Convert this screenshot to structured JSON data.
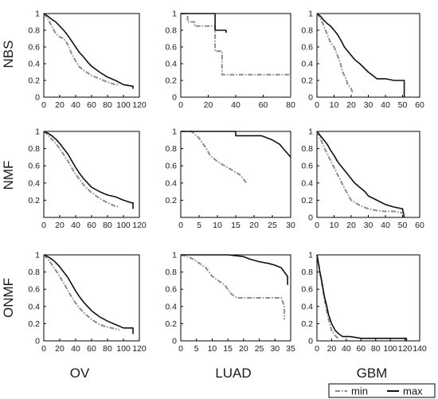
{
  "row_labels": [
    "NBS",
    "NMF",
    "ONMF"
  ],
  "col_labels": [
    "OV",
    "LUAD",
    "GBM"
  ],
  "legend": {
    "items": [
      {
        "label": "min",
        "style": "dashdot",
        "color": "#8c8c8c"
      },
      {
        "label": "max",
        "style": "solid",
        "color": "#111111"
      }
    ]
  },
  "colors": {
    "min": "#8c8c8c",
    "max": "#111111",
    "axes": "#000000"
  },
  "chart_data": [
    {
      "type": "line",
      "row": "NBS",
      "column": "OV",
      "xlim": [
        0,
        120
      ],
      "ylim": [
        0,
        1
      ],
      "xticks": [
        0,
        20,
        40,
        60,
        80,
        100,
        120
      ],
      "yticks": [
        0,
        0.2,
        0.4,
        0.6,
        0.8,
        1
      ],
      "series": [
        {
          "name": "min",
          "style": "dashdot",
          "x": [
            0,
            5,
            10,
            15,
            20,
            25,
            30,
            35,
            40,
            45,
            50,
            55,
            60,
            70,
            80,
            90,
            95
          ],
          "y": [
            1.0,
            0.94,
            0.85,
            0.76,
            0.72,
            0.7,
            0.63,
            0.52,
            0.43,
            0.36,
            0.32,
            0.29,
            0.26,
            0.22,
            0.18,
            0.15,
            0.15
          ]
        },
        {
          "name": "max",
          "style": "solid",
          "x": [
            0,
            5,
            10,
            15,
            20,
            25,
            30,
            35,
            40,
            45,
            50,
            55,
            60,
            70,
            80,
            90,
            100,
            112,
            112
          ],
          "y": [
            1.0,
            0.97,
            0.93,
            0.9,
            0.85,
            0.8,
            0.74,
            0.67,
            0.6,
            0.53,
            0.48,
            0.42,
            0.37,
            0.3,
            0.24,
            0.2,
            0.15,
            0.13,
            0.1
          ]
        }
      ]
    },
    {
      "type": "line",
      "row": "NBS",
      "column": "LUAD",
      "xlim": [
        0,
        80
      ],
      "ylim": [
        0,
        1
      ],
      "xticks": [
        0,
        20,
        40,
        60,
        80
      ],
      "yticks": [
        0,
        0.2,
        0.4,
        0.6,
        0.8,
        1
      ],
      "series": [
        {
          "name": "min",
          "style": "dashdot",
          "x": [
            0,
            5,
            5,
            10,
            10,
            25,
            25,
            30,
            30,
            80,
            80
          ],
          "y": [
            1.0,
            1.0,
            0.9,
            0.9,
            0.85,
            0.85,
            0.55,
            0.55,
            0.27,
            0.27,
            0.0
          ]
        },
        {
          "name": "max",
          "style": "solid",
          "x": [
            0,
            25,
            25,
            33,
            33
          ],
          "y": [
            1.0,
            1.0,
            0.8,
            0.8,
            0.77
          ]
        }
      ]
    },
    {
      "type": "line",
      "row": "NBS",
      "column": "GBM",
      "xlim": [
        0,
        60
      ],
      "ylim": [
        0,
        1
      ],
      "xticks": [
        0,
        10,
        20,
        30,
        40,
        50,
        60
      ],
      "yticks": [
        0,
        0.2,
        0.4,
        0.6,
        0.8,
        1
      ],
      "series": [
        {
          "name": "min",
          "style": "dashdot",
          "x": [
            0,
            2,
            4,
            6,
            8,
            10,
            12,
            14,
            15,
            17,
            18,
            20,
            21
          ],
          "y": [
            1.0,
            0.95,
            0.85,
            0.75,
            0.65,
            0.6,
            0.5,
            0.38,
            0.3,
            0.22,
            0.15,
            0.1,
            0.05
          ]
        },
        {
          "name": "max",
          "style": "solid",
          "x": [
            0,
            2,
            4,
            6,
            8,
            10,
            12,
            14,
            16,
            18,
            20,
            22,
            25,
            30,
            35,
            40,
            45,
            51,
            51
          ],
          "y": [
            1.0,
            0.97,
            0.92,
            0.88,
            0.85,
            0.8,
            0.75,
            0.68,
            0.6,
            0.55,
            0.5,
            0.45,
            0.4,
            0.3,
            0.22,
            0.22,
            0.2,
            0.2,
            0.0
          ]
        }
      ]
    },
    {
      "type": "line",
      "row": "NMF",
      "column": "OV",
      "xlim": [
        0,
        120
      ],
      "ylim": [
        0,
        1
      ],
      "xticks": [
        0,
        20,
        40,
        60,
        80,
        100,
        120
      ],
      "yticks": [
        0.2,
        0.4,
        0.6,
        0.8,
        1
      ],
      "series": [
        {
          "name": "min",
          "style": "dashdot",
          "x": [
            0,
            5,
            10,
            15,
            20,
            25,
            30,
            35,
            40,
            45,
            50,
            55,
            60,
            70,
            80,
            90,
            95
          ],
          "y": [
            1.0,
            0.96,
            0.91,
            0.86,
            0.8,
            0.73,
            0.66,
            0.58,
            0.5,
            0.44,
            0.38,
            0.33,
            0.29,
            0.22,
            0.17,
            0.13,
            0.12
          ]
        },
        {
          "name": "max",
          "style": "solid",
          "x": [
            0,
            5,
            10,
            15,
            20,
            25,
            30,
            35,
            40,
            45,
            50,
            55,
            60,
            70,
            80,
            90,
            100,
            110,
            112,
            112
          ],
          "y": [
            1.0,
            0.98,
            0.95,
            0.91,
            0.86,
            0.8,
            0.74,
            0.66,
            0.58,
            0.51,
            0.45,
            0.4,
            0.35,
            0.3,
            0.26,
            0.24,
            0.2,
            0.17,
            0.17,
            0.1
          ]
        }
      ]
    },
    {
      "type": "line",
      "row": "NMF",
      "column": "LUAD",
      "xlim": [
        0,
        30
      ],
      "ylim": [
        0,
        1
      ],
      "xticks": [
        0,
        5,
        10,
        15,
        20,
        25,
        30
      ],
      "yticks": [
        0.2,
        0.4,
        0.6,
        0.8,
        1
      ],
      "series": [
        {
          "name": "min",
          "style": "dashdot",
          "x": [
            0,
            3,
            5,
            7,
            8,
            10,
            12,
            14,
            16,
            17,
            18
          ],
          "y": [
            1.0,
            1.0,
            0.92,
            0.8,
            0.72,
            0.65,
            0.6,
            0.55,
            0.5,
            0.45,
            0.4
          ]
        },
        {
          "name": "max",
          "style": "solid",
          "x": [
            0,
            15,
            15,
            20,
            22,
            25,
            27,
            28,
            29,
            30
          ],
          "y": [
            1.0,
            1.0,
            0.95,
            0.95,
            0.95,
            0.9,
            0.85,
            0.8,
            0.75,
            0.7
          ]
        }
      ]
    },
    {
      "type": "line",
      "row": "NMF",
      "column": "GBM",
      "xlim": [
        0,
        60
      ],
      "ylim": [
        0,
        1
      ],
      "xticks": [
        0,
        10,
        20,
        30,
        40,
        50,
        60
      ],
      "yticks": [
        0,
        0.2,
        0.4,
        0.6,
        0.8,
        1
      ],
      "series": [
        {
          "name": "min",
          "style": "dashdot",
          "x": [
            0,
            2,
            4,
            6,
            8,
            10,
            12,
            14,
            16,
            18,
            20,
            25,
            30,
            35,
            40,
            45,
            50
          ],
          "y": [
            1.0,
            0.92,
            0.82,
            0.74,
            0.66,
            0.58,
            0.5,
            0.42,
            0.34,
            0.27,
            0.2,
            0.14,
            0.1,
            0.08,
            0.07,
            0.07,
            0.05
          ]
        },
        {
          "name": "max",
          "style": "solid",
          "x": [
            0,
            2,
            4,
            6,
            8,
            10,
            12,
            14,
            16,
            18,
            20,
            22,
            25,
            28,
            30,
            35,
            40,
            45,
            50,
            51
          ],
          "y": [
            1.0,
            0.95,
            0.9,
            0.85,
            0.78,
            0.72,
            0.65,
            0.6,
            0.55,
            0.5,
            0.45,
            0.4,
            0.35,
            0.3,
            0.25,
            0.2,
            0.15,
            0.12,
            0.1,
            0.0
          ]
        }
      ]
    },
    {
      "type": "line",
      "row": "ONMF",
      "column": "OV",
      "xlim": [
        0,
        120
      ],
      "ylim": [
        0,
        1
      ],
      "xticks": [
        0,
        20,
        40,
        60,
        80,
        100,
        120
      ],
      "yticks": [
        0,
        0.2,
        0.4,
        0.6,
        0.8,
        1
      ],
      "series": [
        {
          "name": "min",
          "style": "dashdot",
          "x": [
            0,
            5,
            10,
            15,
            20,
            25,
            30,
            35,
            40,
            45,
            50,
            55,
            60,
            70,
            80,
            90,
            95
          ],
          "y": [
            1.0,
            0.95,
            0.89,
            0.82,
            0.75,
            0.67,
            0.59,
            0.51,
            0.44,
            0.38,
            0.33,
            0.29,
            0.25,
            0.19,
            0.16,
            0.14,
            0.13
          ]
        },
        {
          "name": "max",
          "style": "solid",
          "x": [
            0,
            5,
            10,
            15,
            20,
            25,
            30,
            35,
            40,
            45,
            50,
            55,
            60,
            70,
            80,
            90,
            100,
            112,
            112
          ],
          "y": [
            1.0,
            0.98,
            0.95,
            0.91,
            0.86,
            0.8,
            0.74,
            0.66,
            0.58,
            0.51,
            0.45,
            0.4,
            0.35,
            0.28,
            0.23,
            0.19,
            0.15,
            0.15,
            0.08
          ]
        }
      ]
    },
    {
      "type": "line",
      "row": "ONMF",
      "column": "LUAD",
      "xlim": [
        0,
        35
      ],
      "ylim": [
        0,
        1
      ],
      "xticks": [
        0,
        5,
        10,
        15,
        20,
        25,
        30,
        35
      ],
      "yticks": [
        0,
        0.2,
        0.4,
        0.6,
        0.8,
        1
      ],
      "series": [
        {
          "name": "min",
          "style": "dashdot",
          "x": [
            0,
            2,
            4,
            6,
            8,
            9,
            10,
            12,
            14,
            15,
            16,
            17,
            18,
            20,
            25,
            32,
            33,
            33
          ],
          "y": [
            1.0,
            0.98,
            0.95,
            0.9,
            0.85,
            0.8,
            0.75,
            0.7,
            0.65,
            0.6,
            0.55,
            0.52,
            0.5,
            0.5,
            0.5,
            0.5,
            0.4,
            0.25
          ]
        },
        {
          "name": "max",
          "style": "solid",
          "x": [
            0,
            15,
            20,
            22,
            25,
            28,
            30,
            32,
            33,
            34,
            34
          ],
          "y": [
            1.0,
            1.0,
            0.98,
            0.95,
            0.92,
            0.9,
            0.88,
            0.85,
            0.8,
            0.75,
            0.65
          ]
        }
      ]
    },
    {
      "type": "line",
      "row": "ONMF",
      "column": "GBM",
      "xlim": [
        0,
        140
      ],
      "ylim": [
        0,
        1
      ],
      "xticks": [
        0,
        20,
        40,
        60,
        80,
        100,
        120,
        140
      ],
      "yticks": [
        0,
        0.2,
        0.4,
        0.6,
        0.8,
        1
      ],
      "series": [
        {
          "name": "min",
          "style": "dashdot",
          "x": [
            0,
            2,
            4,
            6,
            8,
            10,
            12,
            14,
            16,
            18,
            20,
            25,
            30
          ],
          "y": [
            1.0,
            0.92,
            0.8,
            0.7,
            0.6,
            0.5,
            0.4,
            0.32,
            0.25,
            0.18,
            0.12,
            0.06,
            0.02
          ]
        },
        {
          "name": "max",
          "style": "solid",
          "x": [
            0,
            2,
            4,
            6,
            8,
            10,
            12,
            14,
            16,
            18,
            20,
            25,
            30,
            35,
            45,
            60,
            80,
            100,
            120,
            122,
            122
          ],
          "y": [
            1.0,
            0.9,
            0.8,
            0.72,
            0.62,
            0.52,
            0.45,
            0.38,
            0.3,
            0.25,
            0.2,
            0.12,
            0.08,
            0.05,
            0.05,
            0.03,
            0.03,
            0.03,
            0.03,
            0.03,
            0.0
          ]
        }
      ]
    }
  ]
}
